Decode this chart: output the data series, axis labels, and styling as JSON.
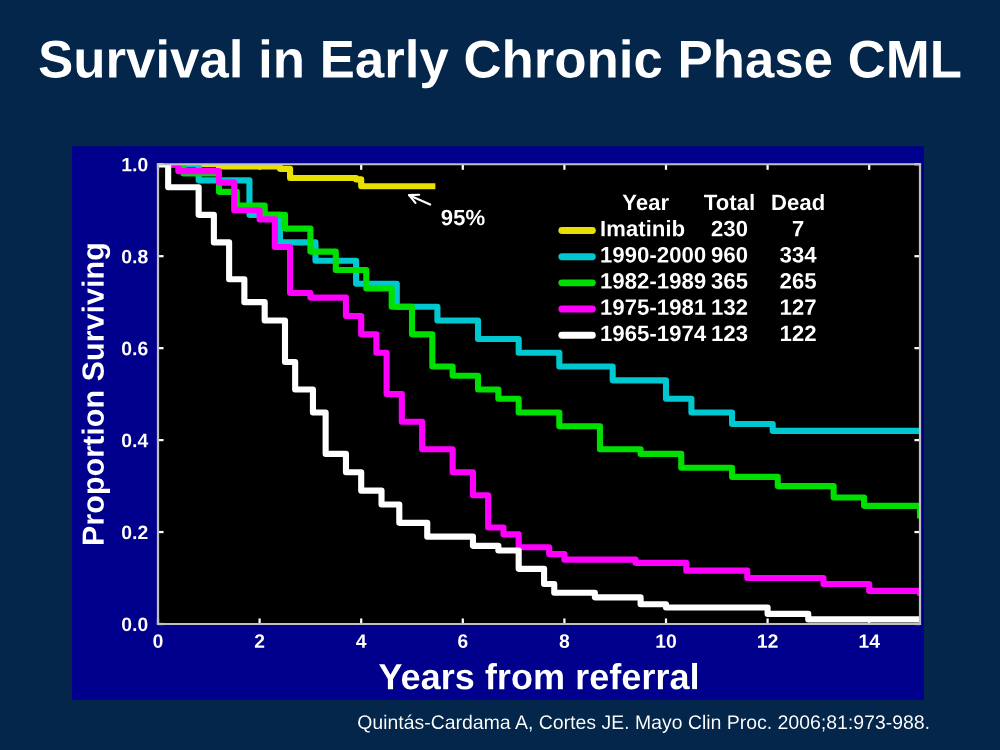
{
  "chart_data": {
    "type": "step",
    "title": "Survival in Early Chronic Phase CML",
    "xlabel": "Years from referral",
    "ylabel": "Proportion Surviving",
    "legend_title": "Year",
    "legend": "top right",
    "grid": false,
    "line_style": "solid",
    "xlim": [
      0,
      15
    ],
    "xticks": [
      0,
      2,
      4,
      6,
      8,
      10,
      12,
      14
    ],
    "ylim": [
      0,
      1
    ],
    "yticks": [
      {
        "value": 0,
        "label": "0.0"
      },
      {
        "value": 0.2,
        "label": "0.2"
      },
      {
        "value": 0.4,
        "label": "0.4"
      },
      {
        "value": 0.6,
        "label": "0.6"
      },
      {
        "value": 0.8,
        "label": "0.8"
      },
      {
        "value": 1,
        "label": "1.0"
      }
    ],
    "series": [
      {
        "name": "Imatinib",
        "color": "#e8e000",
        "x": [
          0,
          1.2,
          2.4,
          2.6,
          3.9,
          4.0,
          5.4
        ],
        "values": [
          1.0,
          0.995,
          0.99,
          0.97,
          0.967,
          0.952,
          0.952
        ]
      },
      {
        "name": "1990-2000",
        "color": "#00c8d0",
        "x": [
          0,
          0.8,
          1.8,
          2.4,
          3.1,
          3.9,
          4.7,
          5.5,
          6.3,
          7.1,
          7.9,
          8.95,
          10,
          10.5,
          11.2,
          11.3,
          12.0,
          12.1,
          15
        ],
        "values": [
          1.0,
          0.965,
          0.89,
          0.83,
          0.79,
          0.74,
          0.69,
          0.66,
          0.62,
          0.59,
          0.56,
          0.53,
          0.49,
          0.46,
          0.46,
          0.435,
          0.435,
          0.42,
          0.42
        ]
      },
      {
        "name": "1982-1989",
        "color": "#00e000",
        "x": [
          0,
          0.5,
          1.2,
          1.55,
          2.1,
          2.5,
          3.0,
          3.5,
          4.1,
          4.6,
          5.0,
          5.4,
          5.8,
          6.3,
          6.7,
          7.1,
          7.9,
          8.7,
          9.5,
          10.3,
          11.3,
          12.2,
          13.3,
          13.9,
          15
        ],
        "values": [
          1.0,
          0.98,
          0.94,
          0.91,
          0.89,
          0.86,
          0.81,
          0.77,
          0.73,
          0.69,
          0.63,
          0.56,
          0.54,
          0.51,
          0.49,
          0.46,
          0.43,
          0.38,
          0.37,
          0.34,
          0.32,
          0.3,
          0.275,
          0.257,
          0.236
        ]
      },
      {
        "name": "1975-1981",
        "color": "#ff00ff",
        "x": [
          0,
          0.4,
          1.2,
          1.5,
          2.0,
          2.3,
          2.6,
          3.0,
          3.7,
          4.0,
          4.3,
          4.5,
          4.8,
          5.2,
          5.8,
          6.2,
          6.5,
          6.8,
          7.1,
          7.7,
          8.0,
          9.4,
          10.4,
          11.6,
          13.1,
          14.0,
          15
        ],
        "values": [
          1.0,
          0.985,
          0.96,
          0.9,
          0.88,
          0.82,
          0.72,
          0.71,
          0.67,
          0.63,
          0.59,
          0.5,
          0.44,
          0.38,
          0.33,
          0.28,
          0.21,
          0.195,
          0.167,
          0.152,
          0.14,
          0.133,
          0.116,
          0.1,
          0.087,
          0.072,
          0.068
        ]
      },
      {
        "name": "1965-1974",
        "color": "#ffffff",
        "x": [
          0,
          0.2,
          0.8,
          1.1,
          1.4,
          1.7,
          2.1,
          2.5,
          2.7,
          3.05,
          3.3,
          3.7,
          4.0,
          4.4,
          4.75,
          5.3,
          6.2,
          6.7,
          7.1,
          7.6,
          7.8,
          8.6,
          9.5,
          10,
          12,
          12.8,
          15
        ],
        "values": [
          1.0,
          0.95,
          0.89,
          0.83,
          0.75,
          0.7,
          0.66,
          0.57,
          0.51,
          0.46,
          0.37,
          0.33,
          0.29,
          0.26,
          0.22,
          0.19,
          0.17,
          0.16,
          0.12,
          0.087,
          0.068,
          0.058,
          0.043,
          0.036,
          0.022,
          0.01,
          0.01
        ]
      }
    ],
    "annotations": [
      {
        "text": "95%",
        "x": 4.8,
        "y": 0.94
      },
      "Quintás-Cardama A, Cortes JE. Mayo Clin Proc. 2006;81:973-988.",
      "Total",
      "Dead",
      "230",
      "7",
      "960",
      "334",
      "365",
      "265",
      "132",
      "127",
      "123",
      "122"
    ]
  }
}
